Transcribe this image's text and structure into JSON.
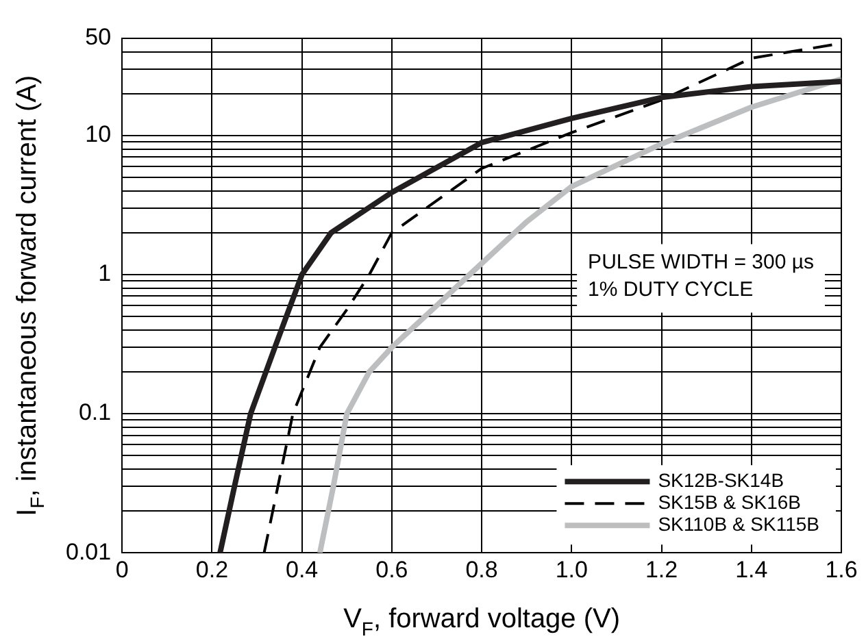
{
  "chart_data": {
    "type": "line",
    "xlabel": "V$_{F}$, forward voltage (V)",
    "ylabel": "I$_{F}$, instantaneous forward current (A)",
    "annotations": [
      "PULSE WIDTH = 300 µs",
      "1% DUTY CYCLE"
    ],
    "log": "y",
    "grid": true,
    "legend": "bottom right",
    "marker": "none",
    "xlim": [
      0,
      1.6
    ],
    "xticks": [
      0,
      0.2,
      0.4,
      0.6,
      0.8,
      {
        "value": 1,
        "label": "1.0"
      },
      1.2,
      1.4,
      1.6
    ],
    "ylim": [
      0.01,
      50
    ],
    "yticks": [
      0.01,
      {
        "value": 0.02,
        "label": null
      },
      {
        "value": 0.03,
        "label": null
      },
      {
        "value": 0.04,
        "label": null
      },
      {
        "value": 0.05,
        "label": null
      },
      {
        "value": 0.06,
        "label": null
      },
      {
        "value": 0.07,
        "label": null
      },
      {
        "value": 0.08,
        "label": null
      },
      {
        "value": 0.09,
        "label": null
      },
      0.1,
      {
        "value": 0.2,
        "label": null
      },
      {
        "value": 0.3,
        "label": null
      },
      {
        "value": 0.4,
        "label": null
      },
      {
        "value": 0.5,
        "label": null
      },
      {
        "value": 0.6,
        "label": null
      },
      {
        "value": 0.7,
        "label": null
      },
      {
        "value": 0.8,
        "label": null
      },
      {
        "value": 0.9,
        "label": null
      },
      1,
      {
        "value": 2,
        "label": null
      },
      {
        "value": 3,
        "label": null
      },
      {
        "value": 4,
        "label": null
      },
      {
        "value": 5,
        "label": null
      },
      {
        "value": 6,
        "label": null
      },
      {
        "value": 7,
        "label": null
      },
      {
        "value": 8,
        "label": null
      },
      {
        "value": 9,
        "label": null
      },
      10,
      {
        "value": 20,
        "label": null
      },
      {
        "value": 30,
        "label": null
      },
      {
        "value": 40,
        "label": null
      },
      50
    ],
    "series": [
      {
        "name": "SK12B-SK14B",
        "color": "#231f20",
        "line_style": "solid",
        "x": [
          0.218,
          0.25,
          0.286,
          0.34,
          0.4,
          0.465,
          0.6,
          0.8,
          1.0,
          1.2,
          1.4,
          1.6
        ],
        "values": [
          0.01,
          0.03,
          0.1,
          0.3,
          1,
          2,
          3.9,
          8.9,
          13.3,
          18.8,
          22.5,
          24.5
        ]
      },
      {
        "name": "SK15B & SK16B",
        "color": "#000000",
        "line_style": "dashed",
        "x": [
          0.316,
          0.38,
          0.44,
          0.5,
          0.55,
          0.6,
          0.8,
          1.0,
          1.2,
          1.4,
          1.6
        ],
        "values": [
          0.01,
          0.1,
          0.3,
          0.56,
          1,
          2,
          5.8,
          10.5,
          18,
          36,
          46
        ]
      },
      {
        "name": "SK110B & SK115B",
        "color": "#bcbec0",
        "line_style": "solid",
        "x": [
          0.44,
          0.47,
          0.5,
          0.55,
          0.6,
          0.7,
          0.78,
          0.9,
          1.0,
          1.2,
          1.4,
          1.6
        ],
        "values": [
          0.01,
          0.03,
          0.1,
          0.2,
          0.3,
          0.6,
          1.05,
          2.4,
          4.3,
          8.7,
          16,
          25.5
        ]
      }
    ]
  }
}
